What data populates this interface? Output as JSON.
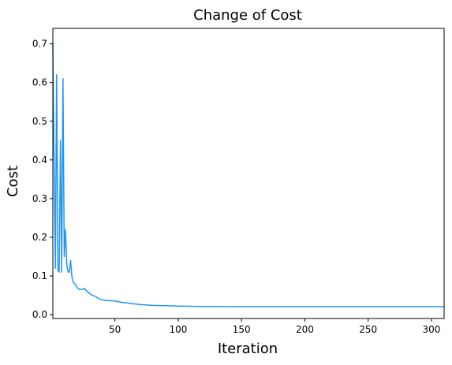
{
  "chart_data": {
    "type": "line",
    "title": "Change of Cost",
    "xlabel": "Iteration",
    "ylabel": "Cost",
    "xlim": [
      1,
      310
    ],
    "ylim": [
      -0.01,
      0.74
    ],
    "xticks": [
      50,
      100,
      150,
      200,
      250,
      300
    ],
    "yticks": [
      0.0,
      0.1,
      0.2,
      0.3,
      0.4,
      0.5,
      0.6,
      0.7
    ],
    "grid": false,
    "legend": "none",
    "line_color": "#2196f3",
    "series": [
      {
        "x": [
          1,
          2,
          3,
          4,
          5,
          6,
          7,
          8,
          9,
          10,
          11,
          12,
          13,
          14,
          15,
          16,
          17,
          18,
          19,
          20,
          22,
          24,
          26,
          28,
          30,
          32,
          34,
          36,
          38,
          40,
          45,
          50,
          55,
          60,
          65,
          70,
          75,
          80,
          90,
          100,
          110,
          120,
          130,
          150,
          175,
          200,
          225,
          250,
          275,
          300,
          310
        ],
        "y": [
          0.7,
          0.4,
          0.12,
          0.62,
          0.115,
          0.11,
          0.45,
          0.11,
          0.61,
          0.15,
          0.22,
          0.13,
          0.11,
          0.11,
          0.14,
          0.1,
          0.085,
          0.08,
          0.078,
          0.07,
          0.065,
          0.065,
          0.068,
          0.06,
          0.055,
          0.05,
          0.048,
          0.044,
          0.04,
          0.038,
          0.036,
          0.035,
          0.032,
          0.03,
          0.028,
          0.026,
          0.025,
          0.024,
          0.023,
          0.022,
          0.0215,
          0.021,
          0.021,
          0.0205,
          0.0205,
          0.0205,
          0.0205,
          0.0205,
          0.0205,
          0.0205,
          0.0205
        ]
      }
    ]
  }
}
